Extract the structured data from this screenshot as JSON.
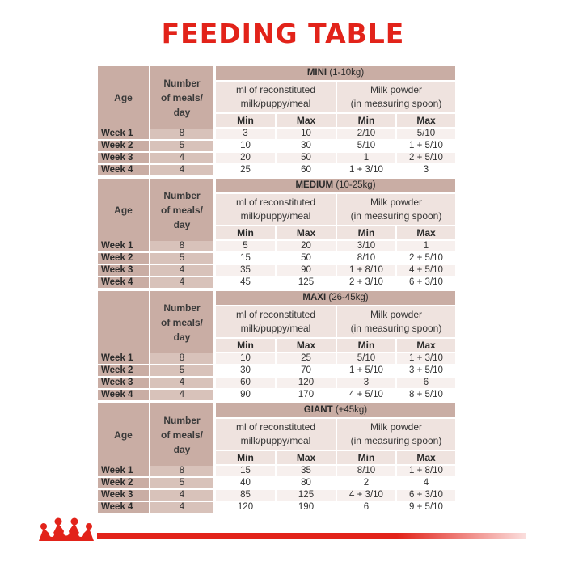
{
  "title": "FEEDING TABLE",
  "labels": {
    "age": "Age",
    "meals": [
      "Number",
      "of meals/",
      "day"
    ],
    "ml_col": [
      "ml of reconstituted",
      "milk/puppy/meal"
    ],
    "powder_col": [
      "Milk powder",
      "(in measuring spoon)"
    ],
    "min": "Min",
    "max": "Max"
  },
  "sections": [
    {
      "name": "MINI",
      "range": "(1-10kg)",
      "show_age": true,
      "rows": [
        {
          "week": "Week 1",
          "meals": "8",
          "ml_min": "3",
          "ml_max": "10",
          "powder_min": "2/10",
          "powder_max": "5/10"
        },
        {
          "week": "Week 2",
          "meals": "5",
          "ml_min": "10",
          "ml_max": "30",
          "powder_min": "5/10",
          "powder_max": "1 + 5/10"
        },
        {
          "week": "Week 3",
          "meals": "4",
          "ml_min": "20",
          "ml_max": "50",
          "powder_min": "1",
          "powder_max": "2 + 5/10"
        },
        {
          "week": "Week 4",
          "meals": "4",
          "ml_min": "25",
          "ml_max": "60",
          "powder_min": "1 + 3/10",
          "powder_max": "3"
        }
      ]
    },
    {
      "name": "MEDIUM",
      "range": "(10-25kg)",
      "show_age": true,
      "rows": [
        {
          "week": "Week 1",
          "meals": "8",
          "ml_min": "5",
          "ml_max": "20",
          "powder_min": "3/10",
          "powder_max": "1"
        },
        {
          "week": "Week 2",
          "meals": "5",
          "ml_min": "15",
          "ml_max": "50",
          "powder_min": "8/10",
          "powder_max": "2 + 5/10"
        },
        {
          "week": "Week 3",
          "meals": "4",
          "ml_min": "35",
          "ml_max": "90",
          "powder_min": "1 + 8/10",
          "powder_max": "4 + 5/10"
        },
        {
          "week": "Week 4",
          "meals": "4",
          "ml_min": "45",
          "ml_max": "125",
          "powder_min": "2 + 3/10",
          "powder_max": "6 + 3/10"
        }
      ]
    },
    {
      "name": "MAXI",
      "range": "(26-45kg)",
      "show_age": false,
      "rows": [
        {
          "week": "Week 1",
          "meals": "8",
          "ml_min": "10",
          "ml_max": "25",
          "powder_min": "5/10",
          "powder_max": "1 + 3/10"
        },
        {
          "week": "Week 2",
          "meals": "5",
          "ml_min": "30",
          "ml_max": "70",
          "powder_min": "1 + 5/10",
          "powder_max": "3 + 5/10"
        },
        {
          "week": "Week 3",
          "meals": "4",
          "ml_min": "60",
          "ml_max": "120",
          "powder_min": "3",
          "powder_max": "6"
        },
        {
          "week": "Week 4",
          "meals": "4",
          "ml_min": "90",
          "ml_max": "170",
          "powder_min": "4 + 5/10",
          "powder_max": "8 + 5/10"
        }
      ]
    },
    {
      "name": "GIANT",
      "range": "(+45kg)",
      "show_age": true,
      "rows": [
        {
          "week": "Week 1",
          "meals": "8",
          "ml_min": "15",
          "ml_max": "35",
          "powder_min": "8/10",
          "powder_max": "1 + 8/10"
        },
        {
          "week": "Week 2",
          "meals": "5",
          "ml_min": "40",
          "ml_max": "80",
          "powder_min": "2",
          "powder_max": "4"
        },
        {
          "week": "Week 3",
          "meals": "4",
          "ml_min": "85",
          "ml_max": "125",
          "powder_min": "4 + 3/10",
          "powder_max": "6 + 3/10"
        },
        {
          "week": "Week 4",
          "meals": "4",
          "ml_min": "120",
          "ml_max": "190",
          "powder_min": "6",
          "powder_max": "9 + 5/10"
        }
      ]
    }
  ],
  "colors": {
    "brand_red": "#e2231a",
    "header_fill": "#c9ada4",
    "light_fill": "#efe3df"
  },
  "footer": {
    "logo_icon": "royal-canin-crown-icon"
  }
}
